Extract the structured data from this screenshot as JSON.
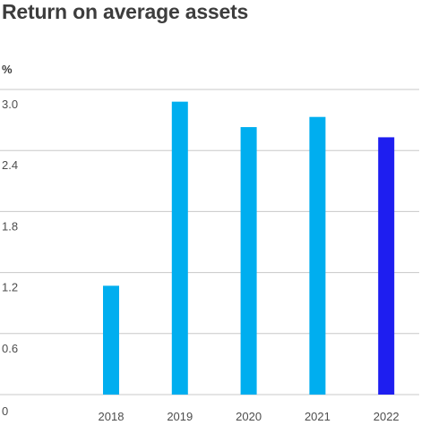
{
  "chart_data": {
    "type": "bar",
    "title": "Return on average assets",
    "ylabel": "%",
    "xlabel": "",
    "categories": [
      "2018",
      "2019",
      "2020",
      "2021",
      "2022"
    ],
    "values": [
      1.07,
      2.88,
      2.63,
      2.73,
      2.53
    ],
    "highlight_index": 4,
    "ylim": [
      0,
      3.0
    ],
    "yticks": [
      "0",
      "0.6",
      "1.2",
      "1.8",
      "2.4",
      "3.0"
    ],
    "grid": true,
    "colors": {
      "bar": "#00aeef",
      "highlight": "#1e1ef0",
      "grid": "#c8c8c8"
    }
  }
}
